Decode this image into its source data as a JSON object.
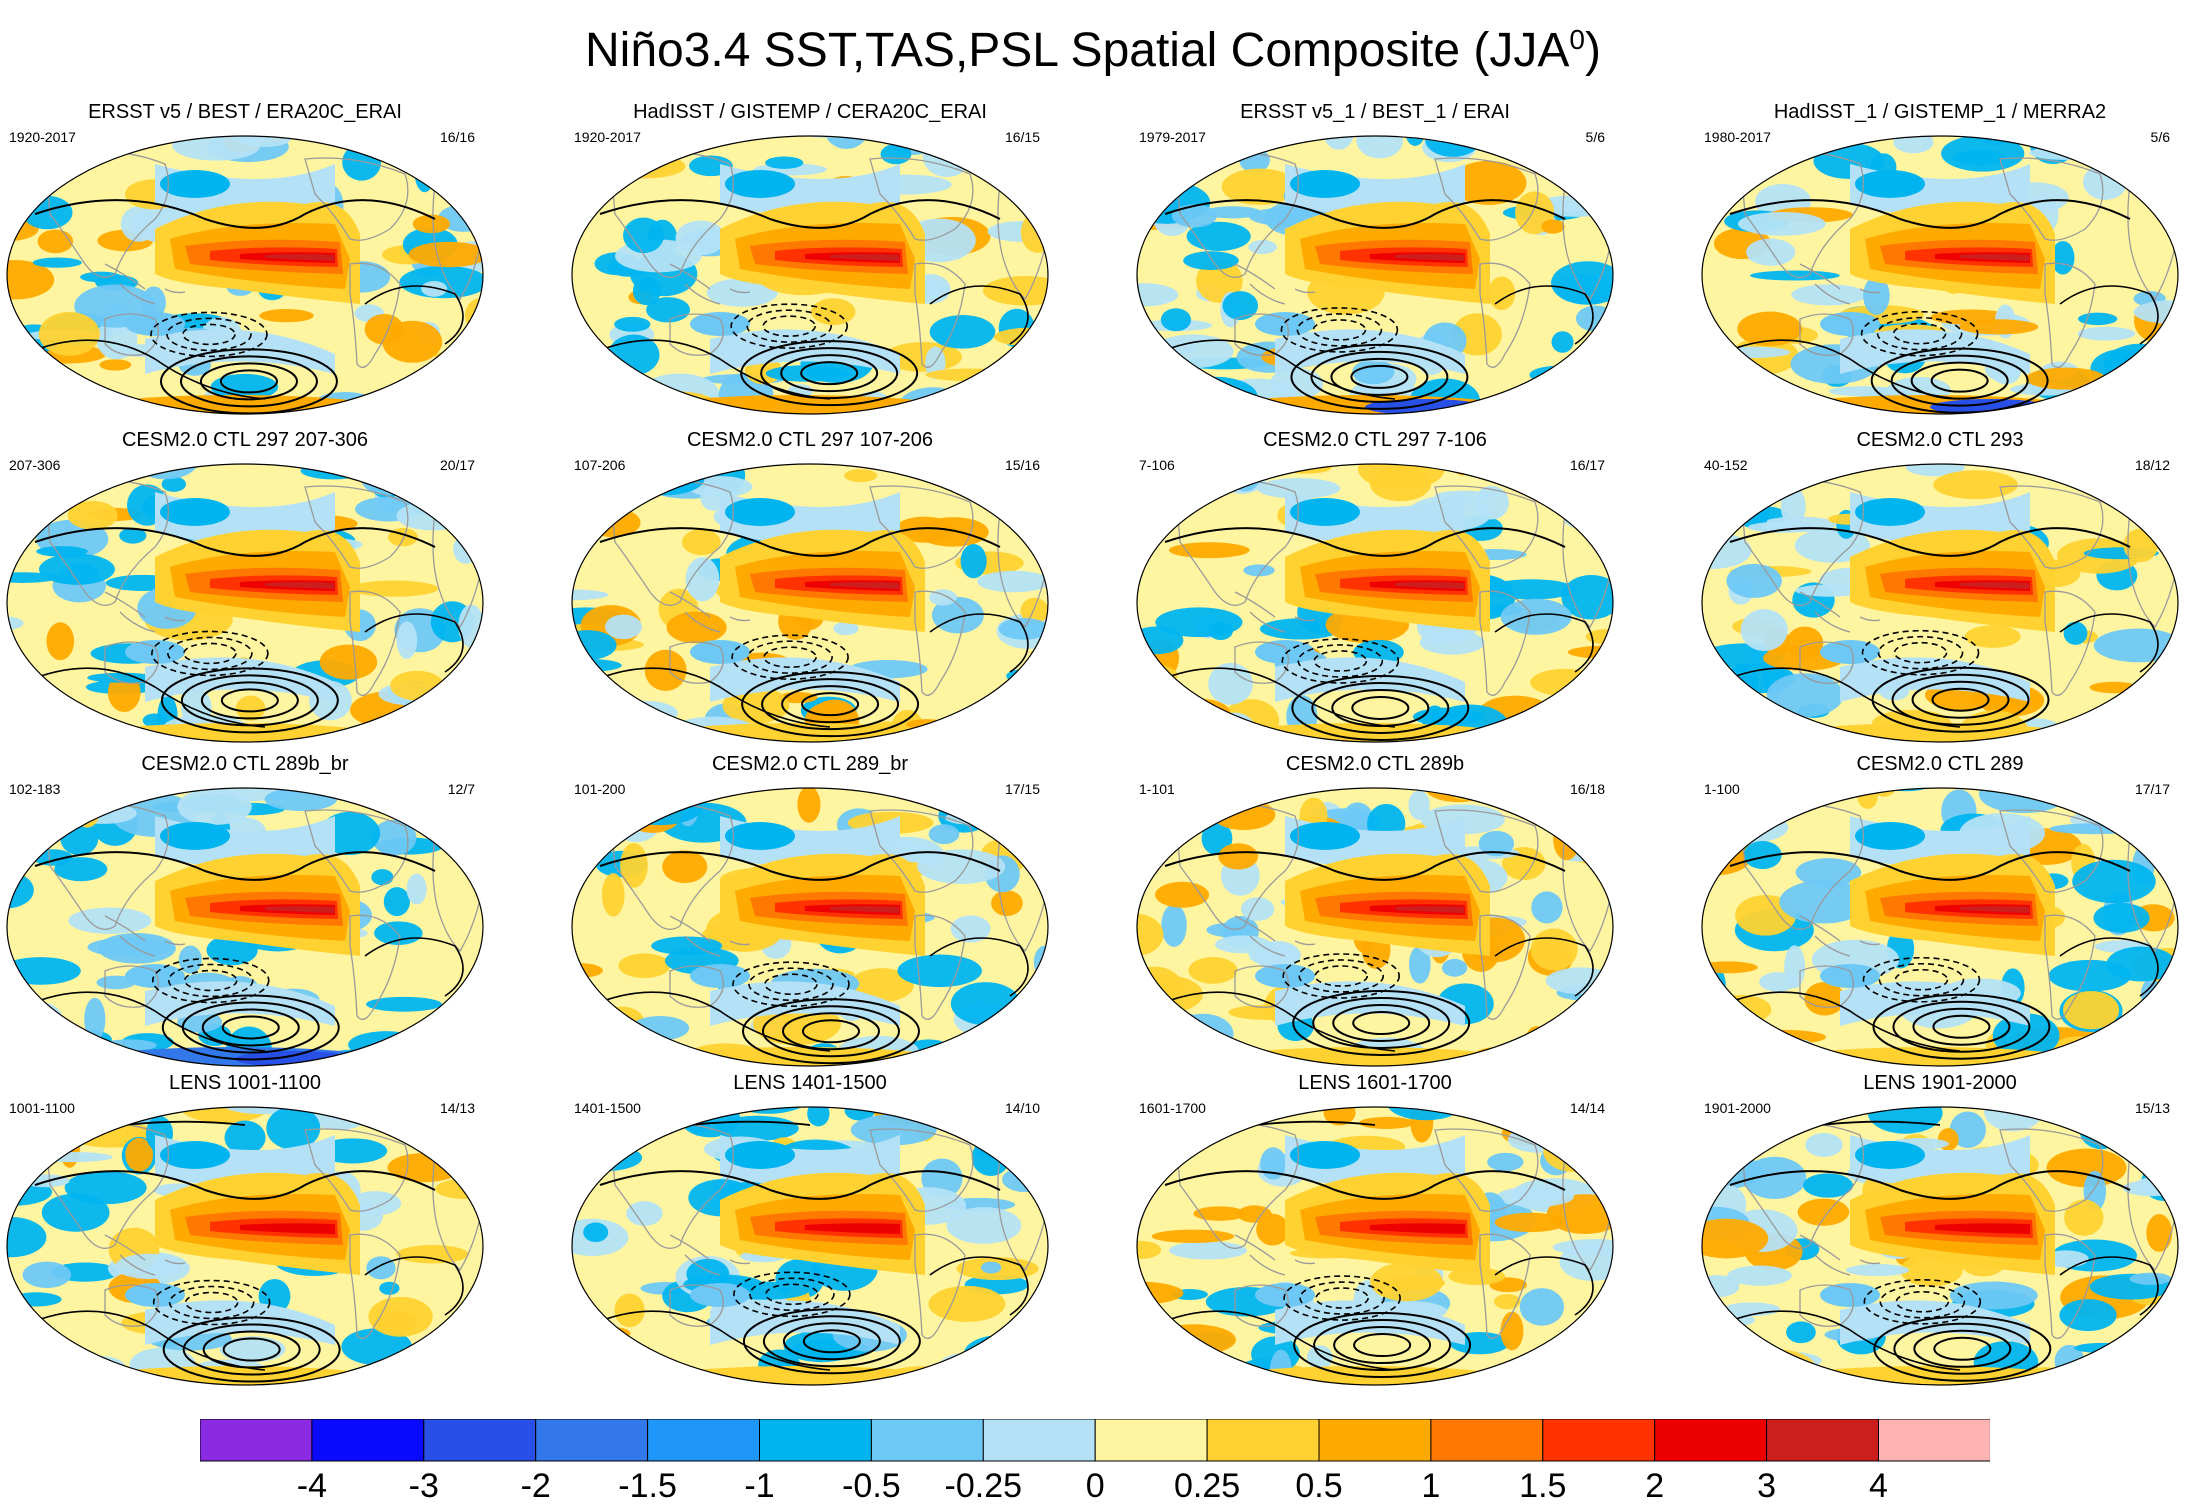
{
  "title": {
    "main": "Niño3.4 SST,TAS,PSL Spatial Composite (JJA",
    "superscript": "0",
    "suffix": ")"
  },
  "colors": {
    "land_outline": "#9a9a9a",
    "contour": "#000000"
  },
  "panels": [
    {
      "title": "ERSST v5 / BEST / ERA20C_ERAI",
      "period": "1920-2017",
      "count": "16/16",
      "pattern": "obs"
    },
    {
      "title": "HadISST / GISTEMP / CERA20C_ERAI",
      "period": "1920-2017",
      "count": "16/15",
      "pattern": "obs"
    },
    {
      "title": "ERSST v5_1 / BEST_1 / ERAI",
      "period": "1979-2017",
      "count": "5/6",
      "pattern": "obs_short"
    },
    {
      "title": "HadISST_1 / GISTEMP_1 / MERRA2",
      "period": "1980-2017",
      "count": "5/6",
      "pattern": "obs_short"
    },
    {
      "title": "CESM2.0 CTL 297 207-306",
      "period": "207-306",
      "count": "20/17",
      "pattern": "model"
    },
    {
      "title": "CESM2.0 CTL 297 107-206",
      "period": "107-206",
      "count": "15/16",
      "pattern": "model"
    },
    {
      "title": "CESM2.0 CTL 297 7-106",
      "period": "7-106",
      "count": "16/17",
      "pattern": "model"
    },
    {
      "title": "CESM2.0 CTL 293",
      "period": "40-152",
      "count": "18/12",
      "pattern": "model"
    },
    {
      "title": "CESM2.0 CTL 289b_br",
      "period": "102-183",
      "count": "12/7",
      "pattern": "model_cold"
    },
    {
      "title": "CESM2.0 CTL 289_br",
      "period": "101-200",
      "count": "17/15",
      "pattern": "model"
    },
    {
      "title": "CESM2.0 CTL 289b",
      "period": "1-101",
      "count": "16/18",
      "pattern": "model_warm"
    },
    {
      "title": "CESM2.0 CTL 289",
      "period": "1-100",
      "count": "17/17",
      "pattern": "model"
    },
    {
      "title": "LENS 1001-1100",
      "period": "1001-1100",
      "count": "14/13",
      "pattern": "lens"
    },
    {
      "title": "LENS 1401-1500",
      "period": "1401-1500",
      "count": "14/10",
      "pattern": "lens"
    },
    {
      "title": "LENS 1601-1700",
      "period": "1601-1700",
      "count": "14/14",
      "pattern": "lens_warm"
    },
    {
      "title": "LENS 1901-2000",
      "period": "1901-2000",
      "count": "15/13",
      "pattern": "lens"
    }
  ],
  "colorbar": {
    "colors": [
      "#8a2be2",
      "#0a0aff",
      "#2850e6",
      "#3278ea",
      "#1e96fa",
      "#00b4f0",
      "#6ec8f5",
      "#b4e1f5",
      "#fff5a0",
      "#ffd232",
      "#ffaa00",
      "#ff7800",
      "#ff3200",
      "#ee0000",
      "#cd1e1e",
      "#ffb4b4"
    ],
    "labels": [
      "-4",
      "-3",
      "-2",
      "-1.5",
      "-1",
      "-0.5",
      "-0.25",
      "0",
      "0.25",
      "0.5",
      "1",
      "1.5",
      "2",
      "3",
      "4"
    ]
  },
  "chart_data": {
    "type": "heatmap",
    "title": "Niño3.4 SST,TAS,PSL Spatial Composite (JJA0)",
    "projection": "global ellipse (Robinson-like), Pacific centered",
    "variables": [
      "SST",
      "TAS",
      "PSL (contours, dashed negative)"
    ],
    "colorbar_levels": [
      -4,
      -3,
      -2,
      -1.5,
      -1,
      -0.5,
      -0.25,
      0,
      0.25,
      0.5,
      1,
      1.5,
      2,
      3,
      4
    ],
    "colorbar_units": "shading anomaly",
    "feature": "warm equatorial eastern Pacific tongue (values 1.5–3), weak negative anomalies in western Pacific horseshoe; PSL low centers southeast Pacific",
    "panels": [
      {
        "title": "ERSST v5 / BEST / ERA20C_ERAI",
        "period": "1920-2017",
        "count": "16/16"
      },
      {
        "title": "HadISST / GISTEMP / CERA20C_ERAI",
        "period": "1920-2017",
        "count": "16/15"
      },
      {
        "title": "ERSST v5_1 / BEST_1 / ERAI",
        "period": "1979-2017",
        "count": "5/6"
      },
      {
        "title": "HadISST_1 / GISTEMP_1 / MERRA2",
        "period": "1980-2017",
        "count": "5/6"
      },
      {
        "title": "CESM2.0 CTL 297 207-306",
        "period": "207-306",
        "count": "20/17"
      },
      {
        "title": "CESM2.0 CTL 297 107-206",
        "period": "107-206",
        "count": "15/16"
      },
      {
        "title": "CESM2.0 CTL 297 7-106",
        "period": "7-106",
        "count": "16/17"
      },
      {
        "title": "CESM2.0 CTL 293",
        "period": "40-152",
        "count": "18/12"
      },
      {
        "title": "CESM2.0 CTL 289b_br",
        "period": "102-183",
        "count": "12/7"
      },
      {
        "title": "CESM2.0 CTL 289_br",
        "period": "101-200",
        "count": "17/15"
      },
      {
        "title": "CESM2.0 CTL 289b",
        "period": "1-101",
        "count": "16/18"
      },
      {
        "title": "CESM2.0 CTL 289",
        "period": "1-100",
        "count": "17/17"
      },
      {
        "title": "LENS 1001-1100",
        "period": "1001-1100",
        "count": "14/13"
      },
      {
        "title": "LENS 1401-1500",
        "period": "1401-1500",
        "count": "14/10"
      },
      {
        "title": "LENS 1601-1700",
        "period": "1601-1700",
        "count": "14/14"
      },
      {
        "title": "LENS 1901-2000",
        "period": "1901-2000",
        "count": "15/13"
      }
    ]
  }
}
